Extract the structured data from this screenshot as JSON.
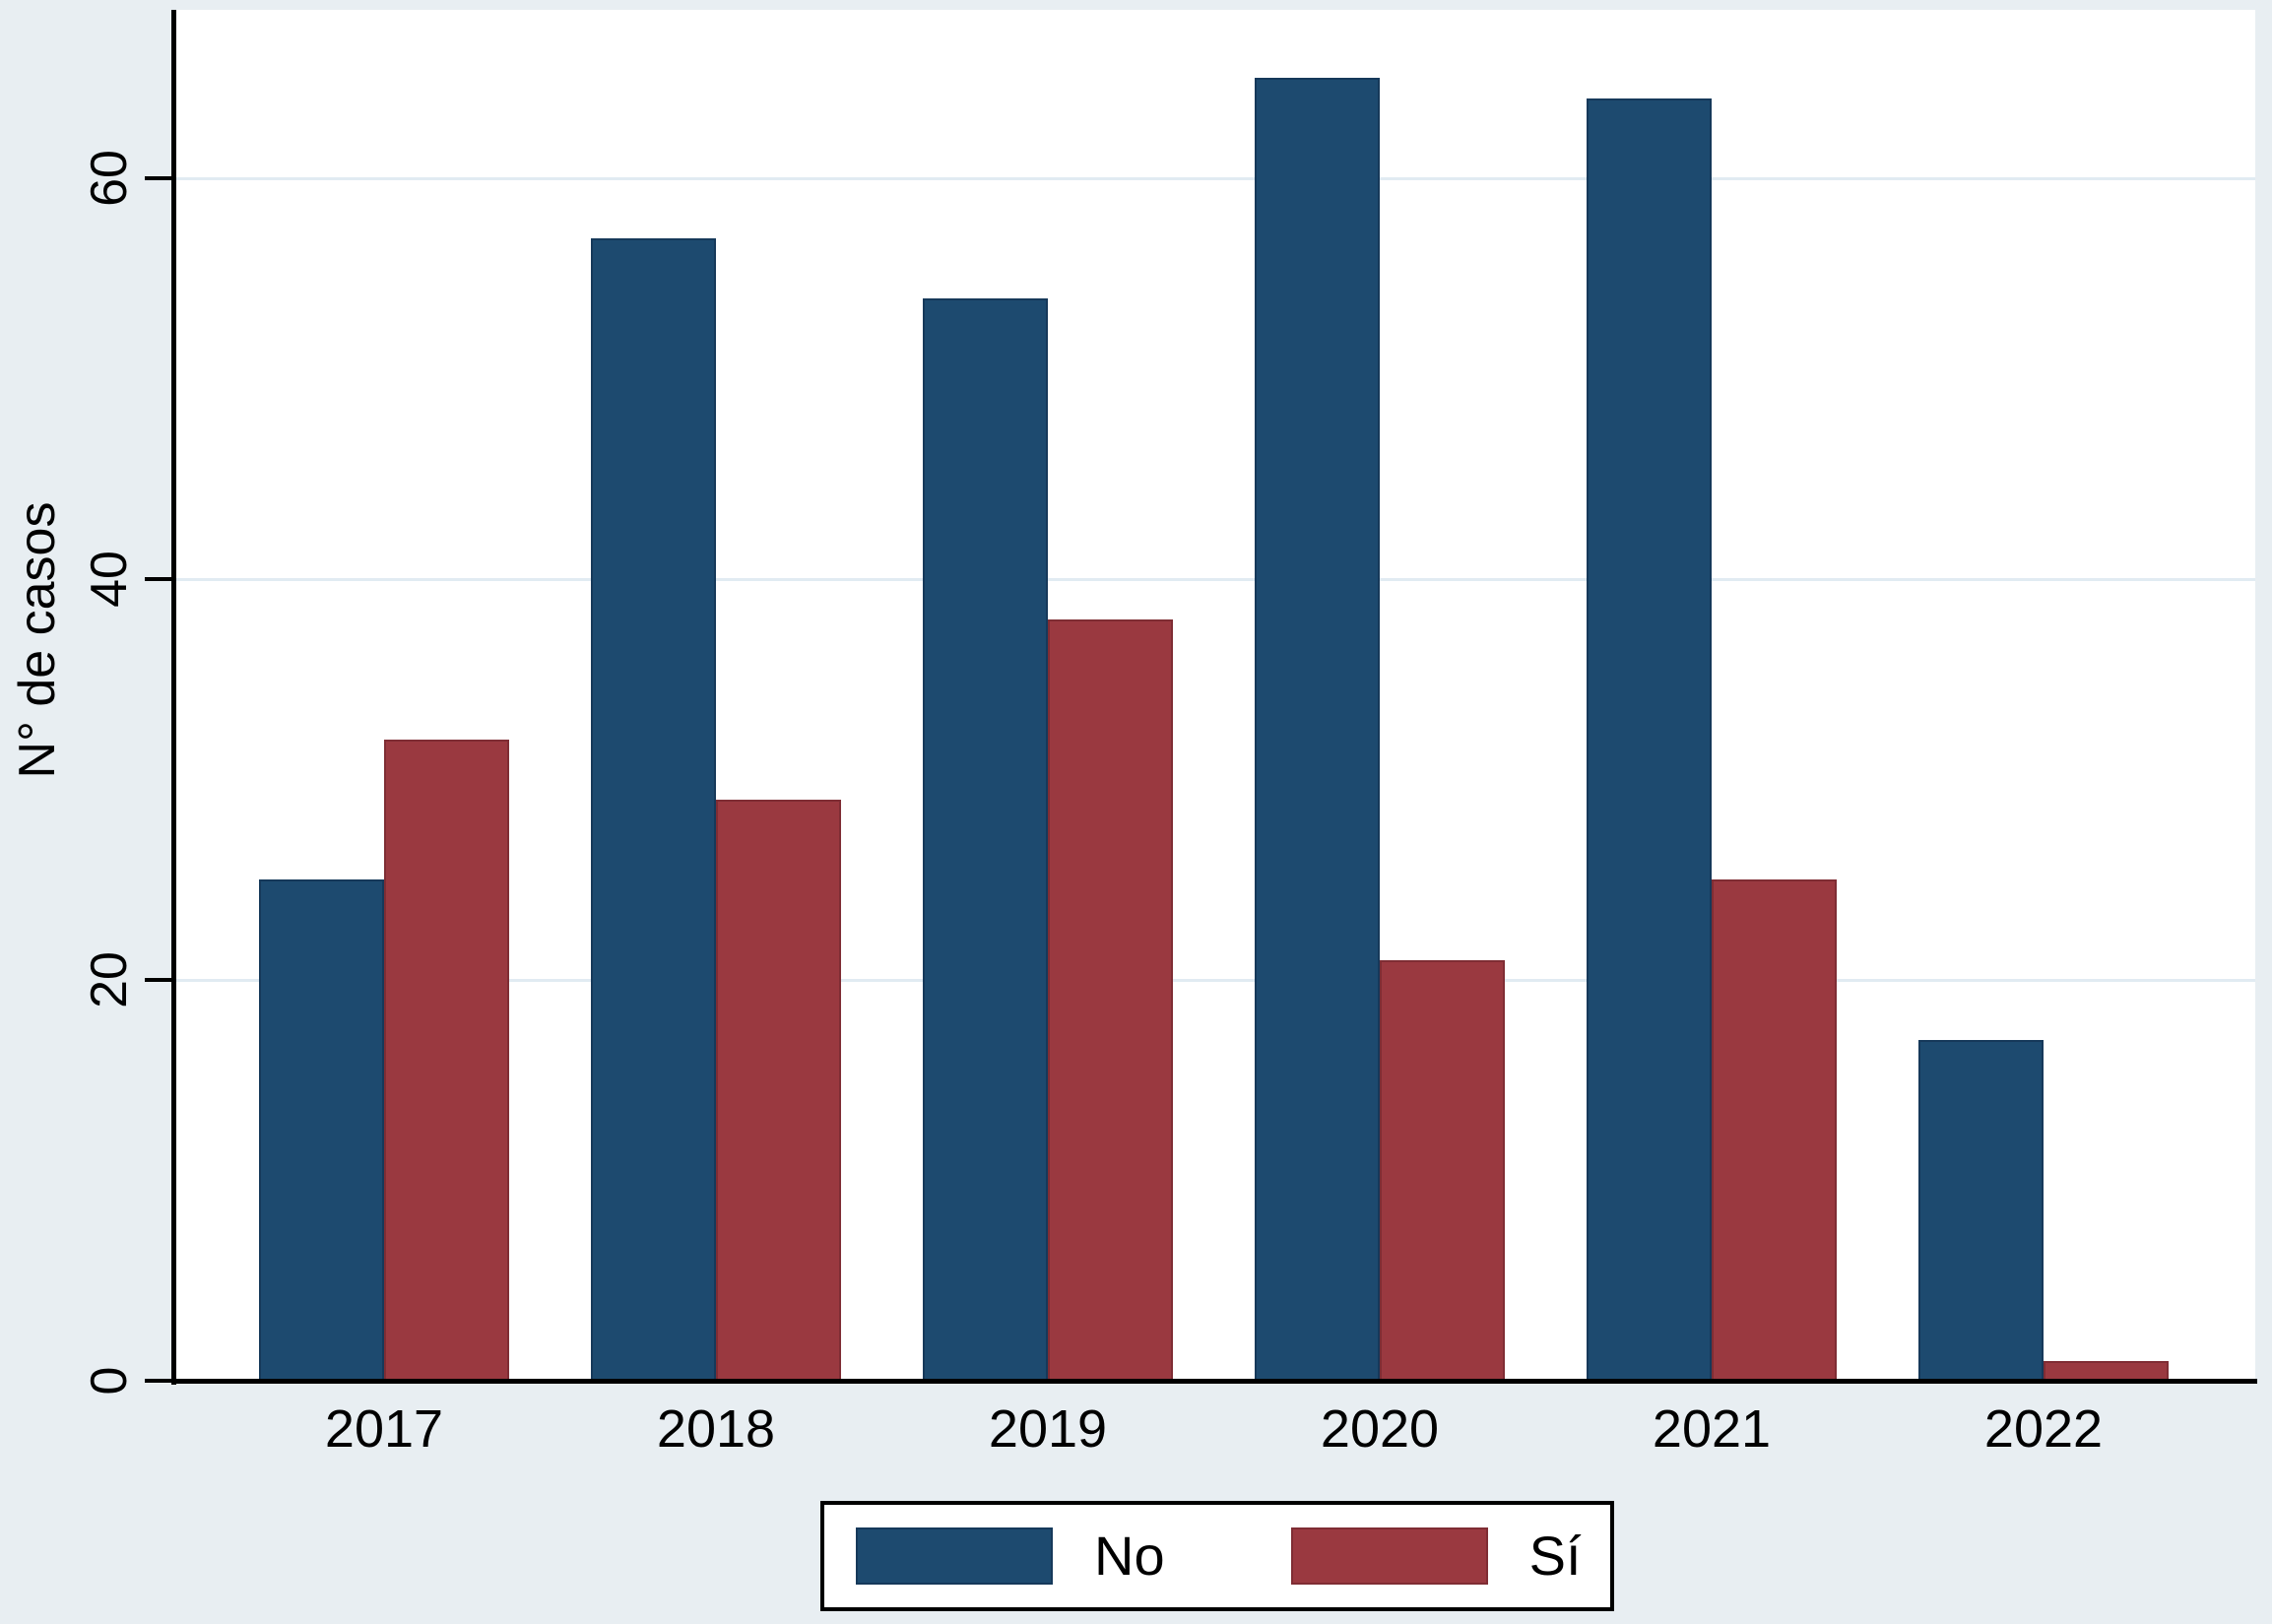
{
  "chart_data": {
    "type": "bar",
    "title": "",
    "categories": [
      "2017",
      "2018",
      "2019",
      "2020",
      "2021",
      "2022"
    ],
    "series": [
      {
        "name": "No",
        "color": "#1d4a6f",
        "border_color": "#16395a",
        "values": [
          25,
          57,
          54,
          65,
          64,
          17
        ]
      },
      {
        "name": "Sí",
        "color": "#9a3940",
        "border_color": "#7f2d34",
        "values": [
          32,
          29,
          38,
          21,
          25,
          1
        ]
      }
    ],
    "xlabel": "",
    "ylabel": "N° de casos",
    "yticks": [
      0,
      20,
      40,
      60
    ],
    "ylim": [
      0,
      68.4
    ],
    "grid": true,
    "gridline_color": "#e1ebf2",
    "plot_background": "#ffffff",
    "figure_background": "#e8eef2",
    "legend_position": "bottom-center",
    "legend_labels": [
      "No",
      "Sí"
    ]
  }
}
